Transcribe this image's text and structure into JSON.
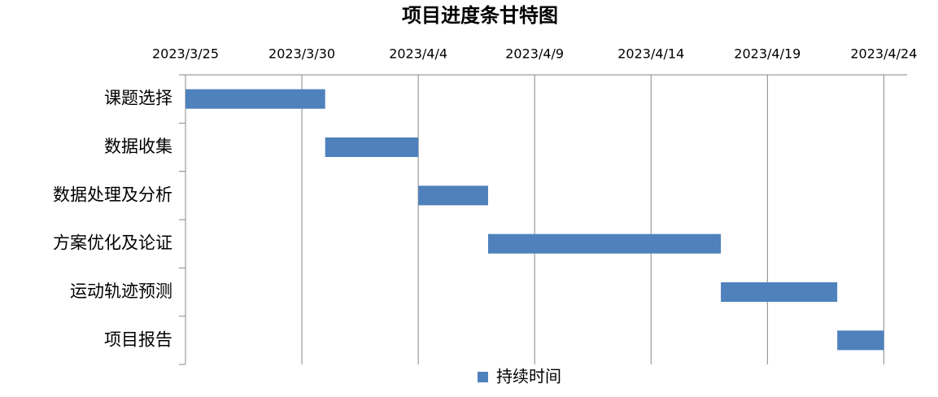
{
  "chart_data": {
    "type": "gantt",
    "title": "项目进度条甘特图",
    "categories": [
      "课题选择",
      "数据收集",
      "数据处理及分析",
      "方案优化及论证",
      "运动轨迹预测",
      "项目报告"
    ],
    "series": [
      {
        "name": "持续时间",
        "color": "#4f81bd",
        "start": [
          "2023/3/25",
          "2023/3/31",
          "2023/4/4",
          "2023/4/7",
          "2023/4/17",
          "2023/4/22"
        ],
        "values": [
          6,
          4,
          3,
          10,
          5,
          2
        ]
      }
    ],
    "xlim": [
      "2023/3/25",
      "2023/4/25"
    ],
    "xticks": [
      "2023/3/25",
      "2023/3/30",
      "2023/4/4",
      "2023/4/9",
      "2023/4/14",
      "2023/4/19",
      "2023/4/24"
    ],
    "grid": true,
    "legend": "bottom"
  }
}
